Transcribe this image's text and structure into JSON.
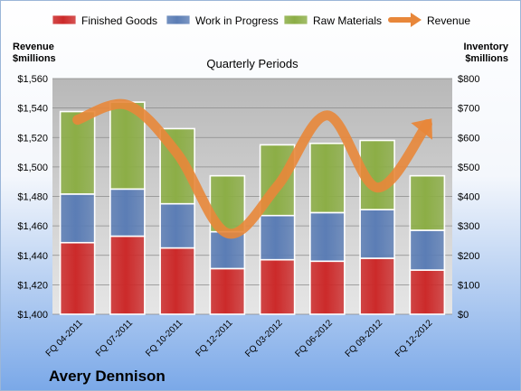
{
  "colors": {
    "finished_goods": "#cc2a2a",
    "work_in_progress": "#5b7db5",
    "raw_materials": "#8cae46",
    "revenue": "#e8873a",
    "plot_bg": "#c8c8c8",
    "page_bg_top": "#ffffff",
    "page_bg_bottom": "#7aa8e8"
  },
  "chart_data": {
    "type": "bar",
    "stacked": true,
    "title": "Quarterly Periods",
    "company": "Avery Dennison",
    "ylabel_left": "Revenue\n$millions",
    "ylabel_right": "Inventory\n$millions",
    "categories": [
      "FQ 04-2011",
      "FQ 07-2011",
      "FQ 10-2011",
      "FQ 12-2011",
      "FQ 03-2012",
      "FQ 06-2012",
      "FQ 09-2012",
      "FQ 12-2012"
    ],
    "left_axis": {
      "min": 1400,
      "max": 1560,
      "step": 20,
      "tick_labels": [
        "$1,400",
        "$1,420",
        "$1,440",
        "$1,460",
        "$1,480",
        "$1,500",
        "$1,520",
        "$1,540",
        "$1,560"
      ]
    },
    "right_axis": {
      "min": 0,
      "max": 800,
      "step": 100,
      "tick_labels": [
        "$0",
        "$100",
        "$200",
        "$300",
        "$400",
        "$500",
        "$600",
        "$700",
        "$800"
      ]
    },
    "grid": true,
    "legend_position": "top",
    "series": [
      {
        "name": "Finished Goods",
        "axis": "right",
        "color_key": "finished_goods",
        "values": [
          243,
          265,
          225,
          155,
          185,
          180,
          190,
          150
        ]
      },
      {
        "name": "Work in Progress",
        "axis": "right",
        "color_key": "work_in_progress",
        "values": [
          165,
          160,
          150,
          125,
          150,
          165,
          165,
          135
        ]
      },
      {
        "name": "Raw Materials",
        "axis": "right",
        "color_key": "raw_materials",
        "values": [
          280,
          295,
          255,
          190,
          240,
          235,
          235,
          185
        ]
      },
      {
        "name": "Revenue",
        "axis": "left",
        "type": "line",
        "color_key": "revenue",
        "values": [
          1532,
          1542,
          1509,
          1455,
          1487,
          1535,
          1486,
          1529
        ]
      }
    ]
  }
}
